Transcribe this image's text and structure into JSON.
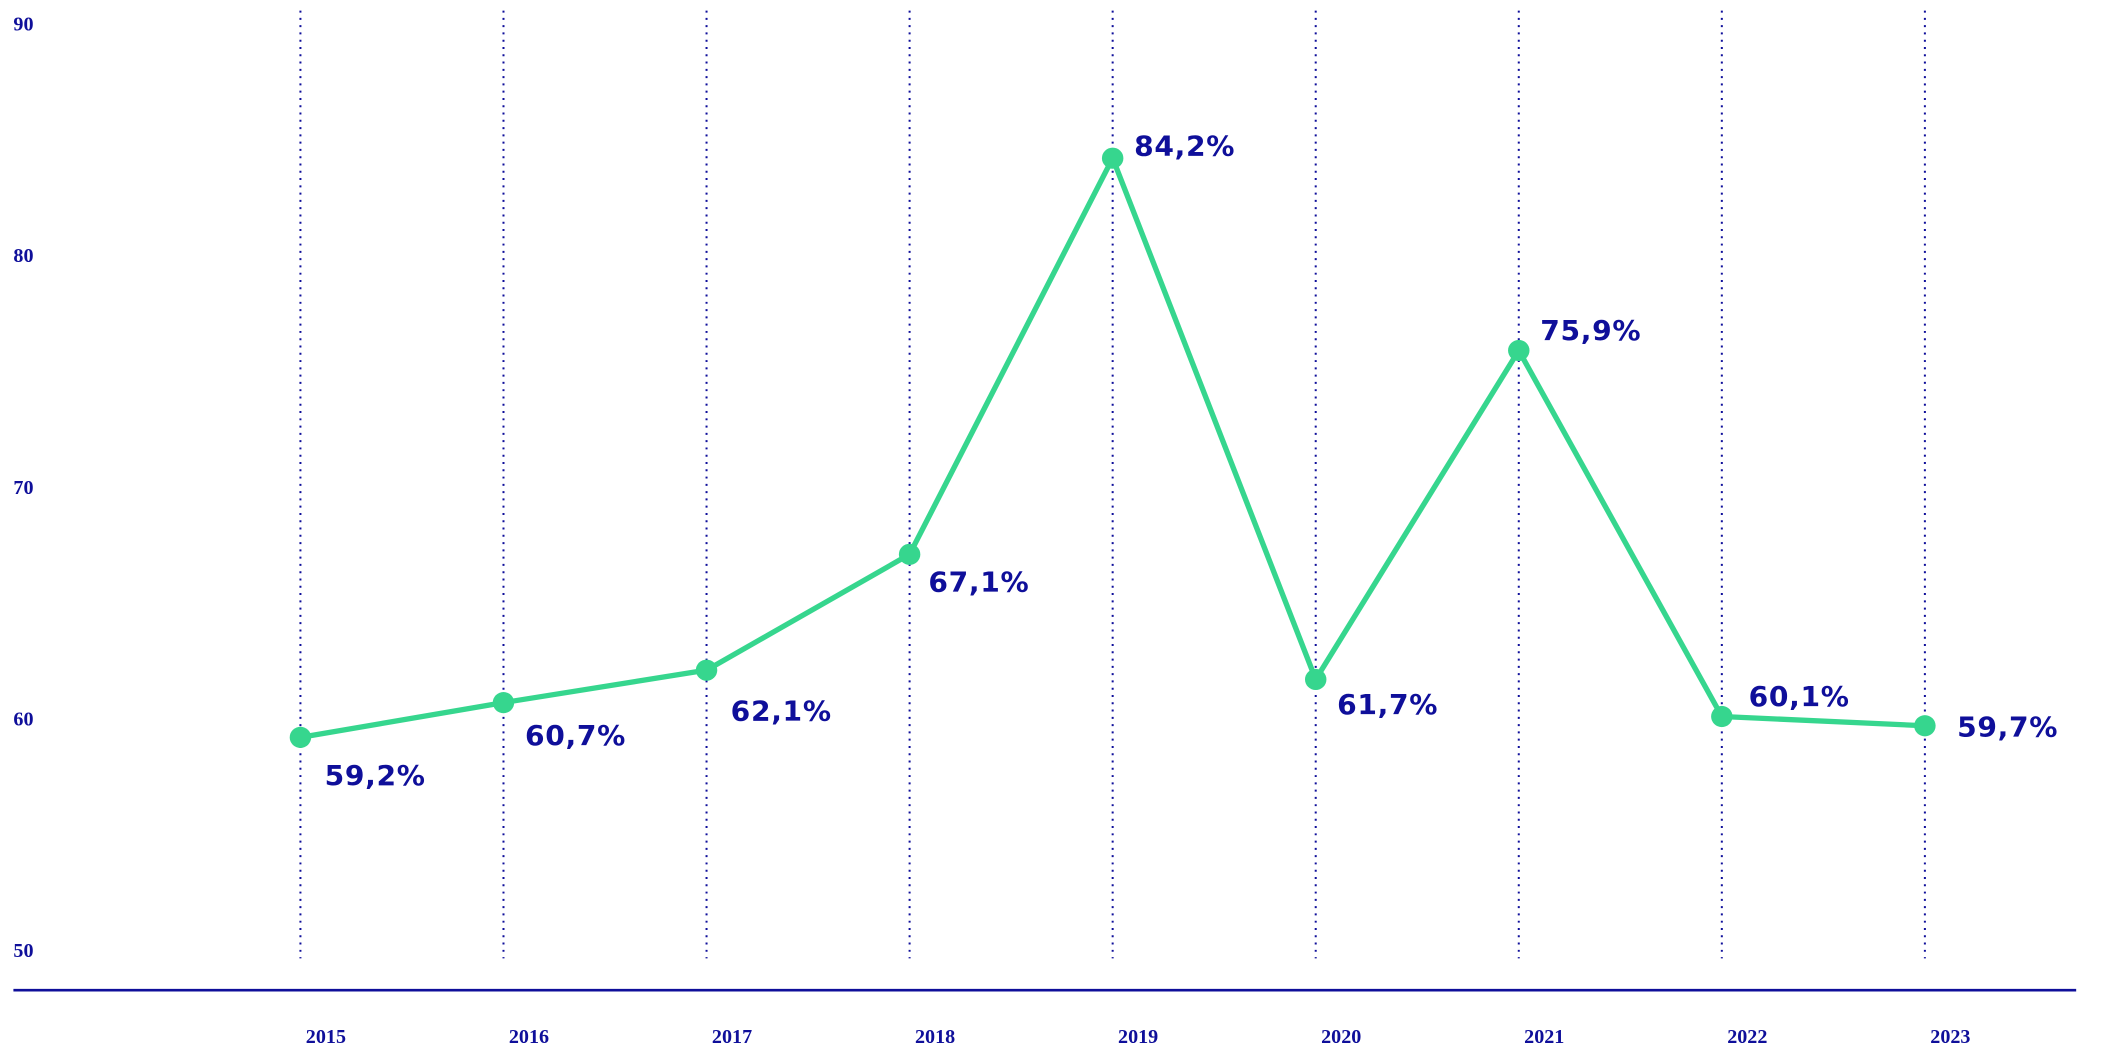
{
  "chart_data": {
    "type": "line",
    "categories": [
      "2015",
      "2016",
      "2017",
      "2018",
      "2019",
      "2020",
      "2021",
      "2022",
      "2023"
    ],
    "series": [
      {
        "color": "#36d68e",
        "values": [
          59.2,
          60.7,
          62.1,
          67.1,
          84.2,
          61.7,
          75.9,
          60.1,
          59.7
        ],
        "value_labels": [
          "59,2%",
          "60,7%",
          "62,1%",
          "67,1%",
          "84,2%",
          "61,7%",
          "75,9%",
          "60,1%",
          "59,7%"
        ]
      }
    ],
    "ylim": [
      50,
      90
    ],
    "yticks": [
      50,
      60,
      70,
      80,
      90
    ],
    "grid": true,
    "axis_color": "#0f0f9a"
  }
}
